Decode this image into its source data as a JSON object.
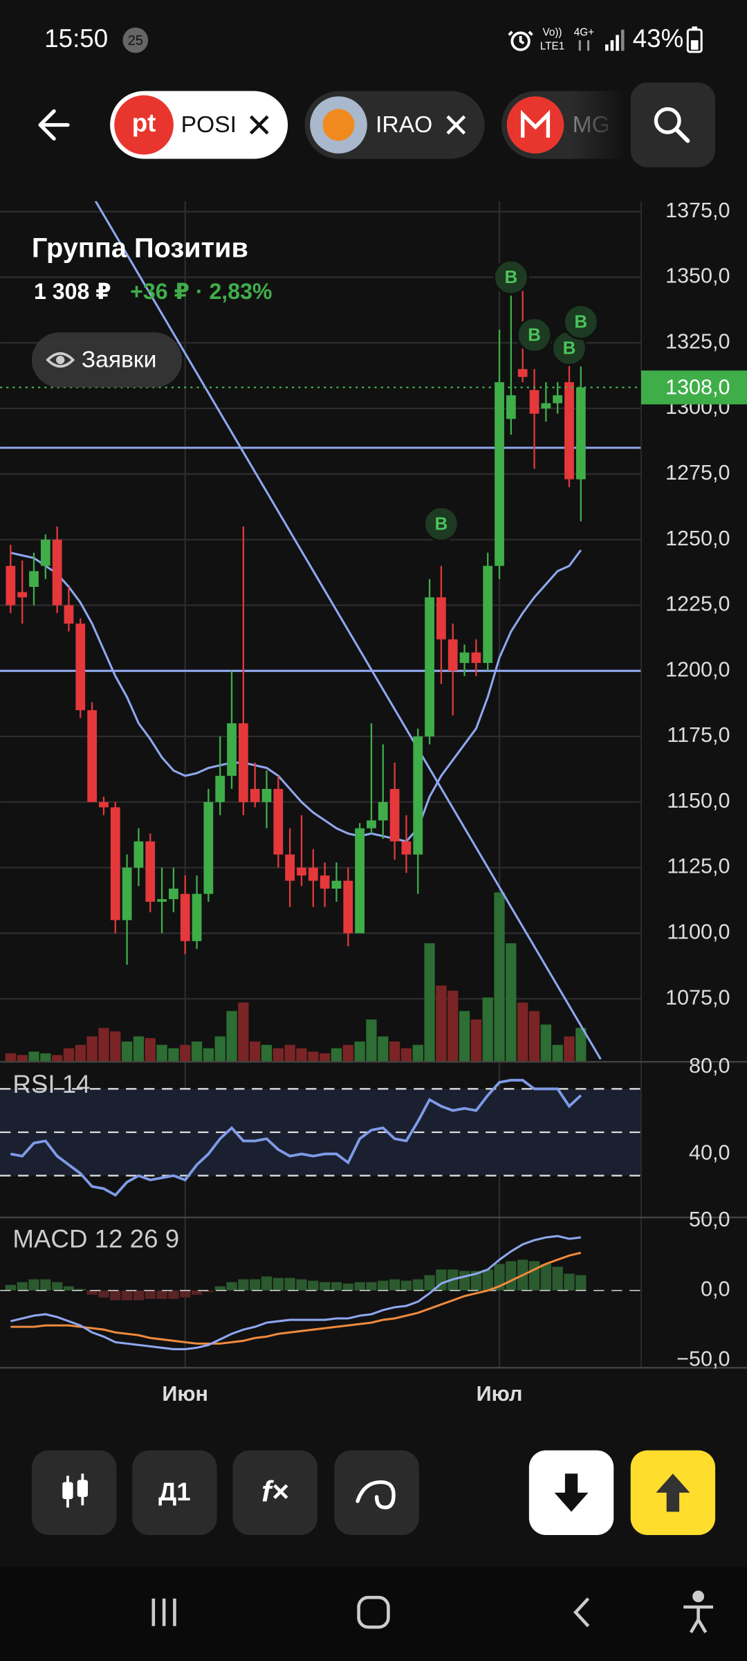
{
  "status_bar": {
    "time": "15:50",
    "badge": "25",
    "volte": "Vo))",
    "lte": "LTE1",
    "network": "4G+",
    "battery": "43%"
  },
  "tabs": [
    {
      "logo": "pt",
      "label": "POSI"
    },
    {
      "label": "IRAO"
    },
    {
      "label": "MG"
    }
  ],
  "instrument": {
    "name": "Группа Позитив",
    "price": "1 308 ₽",
    "change": "+36 ₽ · 2,83%"
  },
  "orders_button": "Заявки",
  "toolbar": {
    "interval": "Д1",
    "indicators": "f×"
  },
  "chart_data": [
    {
      "type": "candlestick",
      "categories": [
        null,
        null,
        null,
        null,
        null,
        null,
        null,
        null,
        null,
        null,
        null,
        null,
        null,
        null,
        null,
        "Июн",
        null,
        null,
        null,
        null,
        null,
        null,
        null,
        null,
        null,
        null,
        null,
        null,
        null,
        null,
        null,
        null,
        null,
        null,
        null,
        null,
        null,
        null,
        null,
        null,
        null,
        null,
        "Июл",
        null,
        null,
        null,
        null,
        null,
        null,
        null
      ],
      "open": [
        1240,
        1230,
        1232,
        1240,
        1250,
        1225,
        1218,
        1185,
        1150,
        1148,
        1105,
        1125,
        1135,
        1112,
        1113,
        1115,
        1097,
        1115,
        1150,
        1160,
        1180,
        1155,
        1150,
        1155,
        1130,
        1125,
        1125,
        1122,
        1117,
        1120,
        1100,
        1140,
        1143,
        1155,
        1135,
        1130,
        1175,
        1228,
        1212,
        1203,
        1207,
        1203,
        1240,
        1296,
        1315,
        1307,
        1300,
        1302,
        1310,
        1273
      ],
      "high": [
        1248,
        1242,
        1245,
        1252,
        1255,
        1232,
        1220,
        1188,
        1152,
        1150,
        1130,
        1140,
        1138,
        1125,
        1125,
        1122,
        1122,
        1155,
        1175,
        1200,
        1255,
        1165,
        1162,
        1160,
        1140,
        1145,
        1132,
        1127,
        1127,
        1125,
        1142,
        1180,
        1172,
        1165,
        1145,
        1178,
        1235,
        1240,
        1218,
        1210,
        1212,
        1245,
        1330,
        1343,
        1345,
        1315,
        1310,
        1310,
        1318,
        1316
      ],
      "low": [
        1222,
        1218,
        1225,
        1235,
        1222,
        1215,
        1182,
        1150,
        1145,
        1100,
        1088,
        1118,
        1108,
        1100,
        1108,
        1092,
        1094,
        1112,
        1145,
        1155,
        1145,
        1148,
        1140,
        1125,
        1110,
        1118,
        1110,
        1110,
        1112,
        1095,
        1100,
        1138,
        1136,
        1128,
        1123,
        1115,
        1172,
        1195,
        1183,
        1198,
        1198,
        1200,
        1235,
        1290,
        1310,
        1277,
        1295,
        1298,
        1270,
        1257
      ],
      "close": [
        1225,
        1228,
        1238,
        1250,
        1225,
        1218,
        1185,
        1150,
        1148,
        1105,
        1125,
        1135,
        1112,
        1113,
        1117,
        1097,
        1115,
        1150,
        1160,
        1180,
        1150,
        1150,
        1155,
        1130,
        1120,
        1122,
        1120,
        1117,
        1120,
        1100,
        1140,
        1143,
        1150,
        1135,
        1130,
        1175,
        1228,
        1212,
        1200,
        1207,
        1203,
        1240,
        1310,
        1305,
        1312,
        1298,
        1302,
        1305,
        1273,
        1308
      ],
      "volume": [
        5,
        4,
        6,
        5,
        4,
        8,
        10,
        15,
        20,
        18,
        12,
        15,
        14,
        10,
        8,
        10,
        12,
        8,
        15,
        30,
        35,
        12,
        10,
        8,
        10,
        8,
        6,
        5,
        8,
        10,
        12,
        25,
        15,
        12,
        8,
        10,
        70,
        45,
        42,
        30,
        25,
        38,
        100,
        70,
        35,
        30,
        22,
        10,
        15,
        20
      ],
      "up_color": "#3fae49",
      "down_color": "#e5383b",
      "volume_up_color": "#2c6e33",
      "volume_down_color": "#7a2426",
      "ma": {
        "color": "#8fa8f0",
        "values": [
          1245,
          1244,
          1243,
          1240,
          1237,
          1232,
          1226,
          1218,
          1208,
          1198,
          1190,
          1180,
          1174,
          1167,
          1162,
          1160,
          1161,
          1163,
          1164,
          1165,
          1165,
          1164,
          1163,
          1160,
          1155,
          1150,
          1146,
          1143,
          1140,
          1138,
          1137,
          1138,
          1137,
          1136,
          1135,
          1140,
          1152,
          1160,
          1166,
          1172,
          1178,
          1190,
          1205,
          1215,
          1222,
          1228,
          1233,
          1238,
          1240,
          1246
        ]
      },
      "hlines": {
        "color": "#8fa8f0",
        "values": [
          1285,
          1200
        ]
      },
      "trendline": {
        "color": "#8fa8f0",
        "x": [
          7.3,
          50.7
        ],
        "y": [
          1379,
          1052
        ]
      },
      "last_price": {
        "value": 1308,
        "label": "1308,0",
        "color": "#3fae49"
      },
      "signals": [
        {
          "index": 37,
          "value": 1256,
          "label": "B"
        },
        {
          "index": 43,
          "value": 1350,
          "label": "B"
        },
        {
          "index": 45,
          "value": 1328,
          "label": "B"
        },
        {
          "index": 48,
          "value": 1323,
          "label": "B"
        },
        {
          "index": 49,
          "value": 1333,
          "label": "B"
        }
      ],
      "ylim": [
        1051,
        1379
      ],
      "yticks": [
        {
          "value": 1075,
          "label": "1075,0"
        },
        {
          "value": 1100,
          "label": "1100,0"
        },
        {
          "value": 1125,
          "label": "1125,0"
        },
        {
          "value": 1150,
          "label": "1150,0"
        },
        {
          "value": 1175,
          "label": "1175,0"
        },
        {
          "value": 1200,
          "label": "1200,0"
        },
        {
          "value": 1225,
          "label": "1225,0"
        },
        {
          "value": 1250,
          "label": "1250,0"
        },
        {
          "value": 1275,
          "label": "1275,0"
        },
        {
          "value": 1300,
          "label": "1300,0"
        },
        {
          "value": 1325,
          "label": "1325,0"
        },
        {
          "value": 1350,
          "label": "1350,0"
        },
        {
          "value": 1375,
          "label": "1375,0"
        }
      ],
      "grid": true
    },
    {
      "type": "line",
      "title": "RSI 14",
      "color": "#7f9be8",
      "values": [
        40,
        39,
        45,
        46,
        39,
        35,
        31,
        25,
        24,
        21,
        27,
        30,
        28,
        29,
        30,
        28,
        35,
        40,
        47,
        52,
        46,
        46,
        47,
        42,
        39,
        40,
        39,
        40,
        40,
        36,
        47,
        51,
        52,
        47,
        46,
        55,
        65,
        62,
        60,
        61,
        60,
        67,
        73,
        74,
        74,
        70,
        70,
        70,
        62,
        67
      ],
      "levels": [
        70,
        50,
        30
      ],
      "band": [
        30,
        70
      ],
      "band_color": "#1b2030",
      "ylim": [
        11.7,
        81.5
      ],
      "yticks": [
        {
          "value": 80,
          "label": "80,0"
        },
        {
          "value": 40,
          "label": "40,0"
        }
      ]
    },
    {
      "type": "macd",
      "title": "MACD 12 26 9",
      "macd": {
        "color": "#8fa8f0",
        "values": [
          -22,
          -20,
          -18,
          -17,
          -19,
          -22,
          -25,
          -30,
          -33,
          -37,
          -38,
          -39,
          -40,
          -41,
          -42,
          -42,
          -41,
          -39,
          -35,
          -31,
          -28,
          -26,
          -23,
          -22,
          -21,
          -21,
          -21,
          -21,
          -20,
          -20,
          -18,
          -17,
          -14,
          -12,
          -11,
          -8,
          -2,
          5,
          8,
          10,
          12,
          15,
          22,
          28,
          33,
          36,
          38,
          39,
          37,
          38
        ]
      },
      "signal": {
        "color": "#f08a3c",
        "values": [
          -26,
          -26,
          -26,
          -25,
          -25,
          -25,
          -26,
          -27,
          -28,
          -30,
          -31,
          -32,
          -34,
          -35,
          -36,
          -37,
          -38,
          -38,
          -38,
          -37,
          -36,
          -34,
          -33,
          -31,
          -30,
          -29,
          -28,
          -27,
          -26,
          -25,
          -24,
          -23,
          -21,
          -20,
          -18,
          -16,
          -13,
          -10,
          -7,
          -4,
          -2,
          0,
          3,
          7,
          11,
          15,
          19,
          22,
          25,
          27
        ]
      },
      "histogram": [
        4,
        6,
        8,
        8,
        6,
        3,
        1,
        -3,
        -5,
        -7,
        -7,
        -7,
        -6,
        -6,
        -6,
        -5,
        -3,
        -1,
        3,
        6,
        8,
        8,
        10,
        9,
        9,
        8,
        7,
        6,
        6,
        5,
        6,
        6,
        7,
        8,
        7,
        8,
        11,
        15,
        15,
        14,
        14,
        15,
        19,
        21,
        22,
        21,
        19,
        17,
        12,
        11
      ],
      "up_color": "#2c5a2f",
      "down_color": "#5a2326",
      "ylim": [
        -55.3,
        52.3
      ],
      "yticks": [
        {
          "value": 50,
          "label": "50,0"
        },
        {
          "value": 0,
          "label": "0,0"
        },
        {
          "value": -50,
          "label": "−50,0"
        }
      ]
    }
  ]
}
